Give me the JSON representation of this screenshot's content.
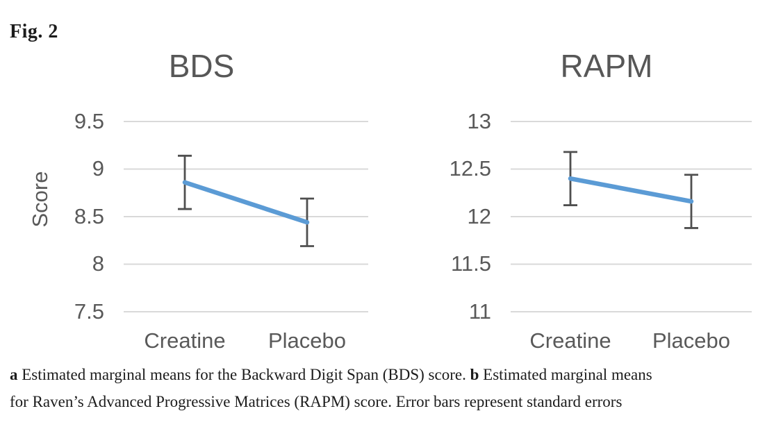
{
  "figure_label": "Fig. 2",
  "colors": {
    "line": "#5B9BD5",
    "error_bar": "#4f4f4f",
    "gridline": "#D9D9D9",
    "chart_text": "#595959",
    "caption_text": "#1c1c1c"
  },
  "chart_data": [
    {
      "type": "line",
      "title": "BDS",
      "ylabel": "Score",
      "xlabel": "",
      "categories": [
        "Creatine",
        "Placebo"
      ],
      "values": [
        8.86,
        8.44
      ],
      "errors": [
        0.28,
        0.25
      ],
      "ylim": [
        7.5,
        9.5
      ],
      "yticks": [
        7.5,
        8,
        8.5,
        9,
        9.5
      ],
      "grid": true,
      "legend": false
    },
    {
      "type": "line",
      "title": "RAPM",
      "ylabel": "",
      "xlabel": "",
      "categories": [
        "Creatine",
        "Placebo"
      ],
      "values": [
        12.4,
        12.16
      ],
      "errors": [
        0.28,
        0.28
      ],
      "ylim": [
        11,
        13
      ],
      "yticks": [
        11,
        11.5,
        12,
        12.5,
        13
      ],
      "grid": true,
      "legend": false
    }
  ],
  "caption": {
    "a_label": "a",
    "line1_after_a": " Estimated marginal means for the Backward Digit Span (BDS) score. ",
    "b_label": "b",
    "line1_after_b": " Estimated marginal means",
    "line2": "for Raven’s Advanced Progressive Matrices (RAPM) score. Error bars represent standard errors"
  }
}
